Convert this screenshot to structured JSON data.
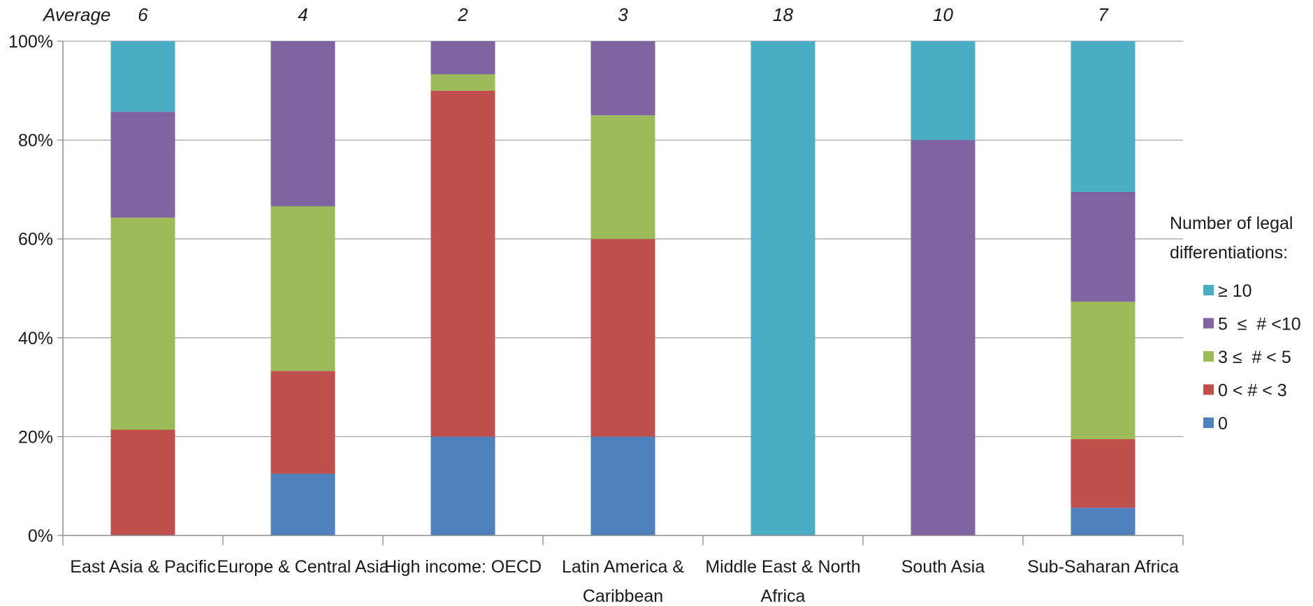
{
  "chart_data": {
    "type": "bar",
    "stacked": true,
    "normalized_percent": true,
    "average_label": "Average",
    "averages": [
      "6",
      "4",
      "2",
      "3",
      "18",
      "10",
      "7"
    ],
    "categories": [
      [
        "East Asia & Pacific"
      ],
      [
        "Europe & Central Asia"
      ],
      [
        "High income: OECD"
      ],
      [
        "Latin America &",
        "Caribbean"
      ],
      [
        "Middle East & North",
        "Africa"
      ],
      [
        "South Asia"
      ],
      [
        "Sub-Saharan Africa"
      ]
    ],
    "series": [
      {
        "name": "0",
        "color": "#4F81BD",
        "values": [
          0,
          12.5,
          20,
          20,
          0,
          0,
          5.6
        ]
      },
      {
        "name": "0 < # < 3",
        "color": "#C0504D",
        "values": [
          21.4,
          20.8,
          70,
          40,
          0,
          0,
          13.9
        ]
      },
      {
        "name": "3 ≤  # < 5",
        "color": "#9BBB59",
        "values": [
          42.9,
          33.3,
          3.3,
          25,
          0,
          0,
          27.8
        ]
      },
      {
        "name": "5  ≤  # <10",
        "color": "#8064A2",
        "values": [
          21.4,
          33.4,
          6.7,
          15,
          0,
          80,
          22.2
        ]
      },
      {
        "name": "≥ 10",
        "color": "#4BACC6",
        "values": [
          14.3,
          0,
          0,
          0,
          100,
          20,
          30.5
        ]
      }
    ],
    "legend_order": [
      4,
      3,
      2,
      1,
      0
    ],
    "legend_title": [
      "Number of legal",
      "differentiations:"
    ],
    "legend_position": "right",
    "y_ticks": [
      "0%",
      "20%",
      "40%",
      "60%",
      "80%",
      "100%"
    ],
    "ylim": [
      0,
      100
    ],
    "grid": true,
    "gridline_color": "#A6A6A6"
  }
}
